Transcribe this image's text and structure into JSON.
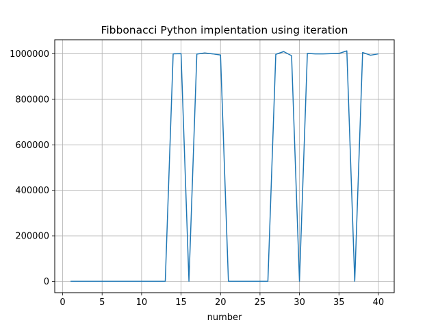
{
  "chart_data": {
    "type": "line",
    "title": "Fibbonacci Python implentation using iteration",
    "xlabel": "number",
    "ylabel": "",
    "xlim": [
      -1,
      42
    ],
    "ylim": [
      -50000,
      1062000
    ],
    "xticks": [
      0,
      5,
      10,
      15,
      20,
      25,
      30,
      35,
      40
    ],
    "yticks": [
      0,
      200000,
      400000,
      600000,
      800000,
      1000000
    ],
    "grid": true,
    "legend": "none",
    "series": [
      {
        "color": "#1f77b4",
        "x": [
          1,
          2,
          3,
          4,
          5,
          6,
          7,
          8,
          9,
          10,
          11,
          12,
          13,
          14,
          15,
          16,
          17,
          18,
          19,
          20,
          21,
          22,
          23,
          24,
          25,
          26,
          27,
          28,
          29,
          30,
          31,
          32,
          33,
          34,
          35,
          36,
          37,
          38,
          39,
          40
        ],
        "y": [
          0,
          0,
          0,
          0,
          0,
          0,
          0,
          0,
          0,
          0,
          0,
          0,
          0,
          1000000,
          1001000,
          0,
          999000,
          1004000,
          1000000,
          995000,
          0,
          0,
          0,
          0,
          0,
          0,
          998000,
          1010000,
          992000,
          0,
          1002000,
          1000000,
          1000000,
          1001000,
          1002000,
          1013000,
          0,
          1006000,
          994000,
          1000000
        ]
      }
    ]
  }
}
